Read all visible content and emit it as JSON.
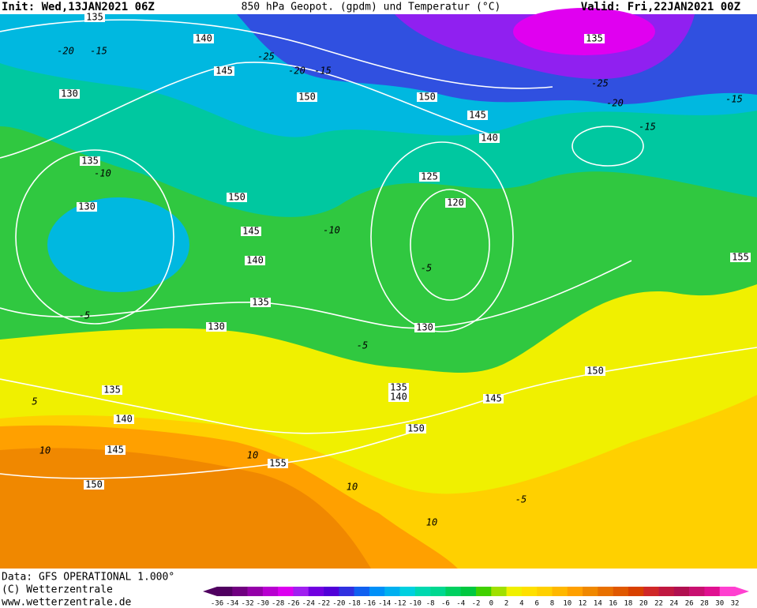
{
  "header": {
    "init": "Init: Wed,13JAN2021 06Z",
    "title": "850 hPa Geopot. (gpdm) und Temperatur (°C)",
    "valid": "Valid: Fri,22JAN2021 00Z"
  },
  "footer": {
    "data": "Data: GFS OPERATIONAL 1.000°",
    "copyright": "(C) Wetterzentrale",
    "url": "www.wetterzentrale.de"
  },
  "colorbar": {
    "labels": [
      -36,
      -34,
      -32,
      -30,
      -28,
      -26,
      -24,
      -22,
      -20,
      -18,
      -16,
      -14,
      -12,
      -10,
      -8,
      -6,
      -4,
      -2,
      0,
      2,
      4,
      6,
      8,
      10,
      12,
      14,
      16,
      18,
      20,
      22,
      24,
      26,
      28,
      30,
      32
    ],
    "colors": [
      "#500060",
      "#700080",
      "#9400a8",
      "#b800d0",
      "#dc00f0",
      "#a020f0",
      "#7000e0",
      "#5000d8",
      "#3030e0",
      "#1060f0",
      "#0090f8",
      "#00b0f0",
      "#00d0e0",
      "#00d8b0",
      "#00d890",
      "#00d060",
      "#00c840",
      "#40d000",
      "#a0e000",
      "#f0f000",
      "#ffe000",
      "#ffd000",
      "#ffb800",
      "#ffa000",
      "#f08800",
      "#e87000",
      "#e05800",
      "#d84000",
      "#d02828",
      "#c01840",
      "#b01050",
      "#c81070",
      "#e01090",
      "#ff40d0"
    ]
  },
  "geopotential_labels": [
    135,
    140,
    145,
    130,
    150,
    150,
    145,
    140,
    135,
    130,
    150,
    145,
    140,
    135,
    130,
    120,
    125,
    130,
    135,
    140,
    145,
    150,
    155,
    150,
    145,
    150,
    135,
    140,
    155,
    135
  ],
  "temperature_labels": [
    -20,
    -15,
    -25,
    -20,
    -15,
    -10,
    -10,
    -5,
    -5,
    5,
    10,
    10,
    10,
    -5,
    10,
    -25,
    -20,
    -15,
    -15,
    -5
  ]
}
